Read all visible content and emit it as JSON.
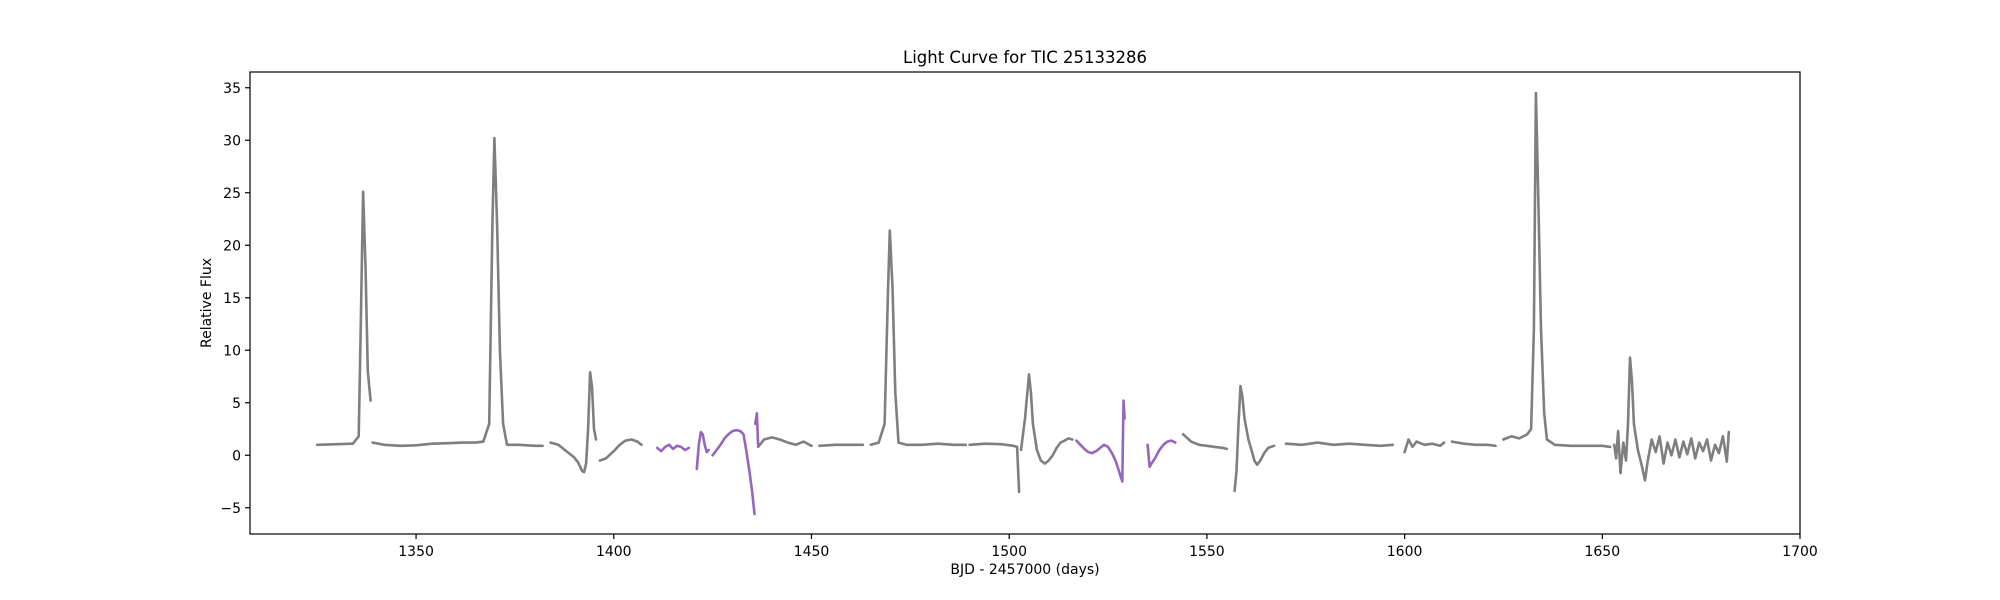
{
  "chart_data": {
    "type": "line",
    "title": "Light Curve for TIC 25133286",
    "xlabel": "BJD - 2457000 (days)",
    "ylabel": "Relative Flux",
    "xlim": [
      1308,
      1700
    ],
    "ylim": [
      -7.5,
      36.5
    ],
    "xticks": [
      1350,
      1400,
      1450,
      1500,
      1550,
      1600,
      1650,
      1700
    ],
    "yticks": [
      -5,
      0,
      5,
      10,
      15,
      20,
      25,
      30,
      35
    ],
    "grid": false,
    "legend": "none",
    "series": [
      {
        "color": "#7f7f7f",
        "segments": [
          [
            [
              1325,
              1.0
            ],
            [
              1330,
              1.05
            ],
            [
              1334,
              1.1
            ],
            [
              1335.5,
              1.8
            ],
            [
              1336,
              12
            ],
            [
              1336.6,
              25.1
            ],
            [
              1337.2,
              18
            ],
            [
              1337.8,
              8
            ],
            [
              1338.5,
              5.2
            ]
          ],
          [
            [
              1339,
              1.2
            ],
            [
              1342,
              1.0
            ],
            [
              1346,
              0.9
            ],
            [
              1350,
              0.95
            ],
            [
              1354,
              1.1
            ],
            [
              1358,
              1.15
            ],
            [
              1362,
              1.2
            ],
            [
              1365,
              1.2
            ],
            [
              1367,
              1.3
            ],
            [
              1368.5,
              3
            ],
            [
              1369.3,
              22
            ],
            [
              1369.8,
              30.2
            ],
            [
              1370.5,
              22
            ],
            [
              1371.2,
              10
            ],
            [
              1372,
              3
            ],
            [
              1373,
              1.0
            ],
            [
              1376,
              1.0
            ],
            [
              1380,
              0.9
            ],
            [
              1382,
              0.9
            ]
          ],
          [
            [
              1384,
              1.2
            ],
            [
              1386,
              1.0
            ],
            [
              1388,
              0.4
            ],
            [
              1390,
              -0.2
            ],
            [
              1391,
              -0.7
            ],
            [
              1392,
              -1.5
            ],
            [
              1392.5,
              -1.6
            ],
            [
              1393,
              -0.8
            ],
            [
              1393.5,
              2.5
            ],
            [
              1394,
              7.9
            ],
            [
              1394.5,
              6.5
            ],
            [
              1395,
              2.5
            ],
            [
              1395.5,
              1.5
            ]
          ],
          [
            [
              1396.5,
              -0.5
            ],
            [
              1398,
              -0.3
            ],
            [
              1400,
              0.4
            ],
            [
              1401.5,
              1.0
            ],
            [
              1403,
              1.4
            ],
            [
              1404.5,
              1.5
            ],
            [
              1406,
              1.3
            ],
            [
              1407,
              1.0
            ]
          ],
          [
            [
              1436.5,
              0.8
            ],
            [
              1438,
              1.5
            ],
            [
              1440,
              1.7
            ],
            [
              1442,
              1.5
            ],
            [
              1444,
              1.2
            ],
            [
              1446,
              1.0
            ],
            [
              1448,
              1.3
            ],
            [
              1450,
              0.9
            ]
          ],
          [
            [
              1452,
              0.9
            ],
            [
              1456,
              1.0
            ],
            [
              1460,
              1.0
            ],
            [
              1463,
              1.0
            ]
          ],
          [
            [
              1465,
              1.0
            ],
            [
              1467,
              1.2
            ],
            [
              1468.5,
              3
            ],
            [
              1469.3,
              15
            ],
            [
              1469.8,
              21.4
            ],
            [
              1470.5,
              16
            ],
            [
              1471.2,
              6
            ],
            [
              1472,
              1.2
            ],
            [
              1474,
              1.0
            ],
            [
              1478,
              1.0
            ],
            [
              1482,
              1.1
            ],
            [
              1486,
              1.0
            ],
            [
              1489,
              1.0
            ]
          ],
          [
            [
              1490,
              1.0
            ],
            [
              1494,
              1.1
            ],
            [
              1498,
              1.05
            ],
            [
              1501,
              0.9
            ],
            [
              1502,
              0.8
            ],
            [
              1502.5,
              -3.5
            ]
          ],
          [
            [
              1503,
              0.5
            ],
            [
              1504,
              3.5
            ],
            [
              1505,
              7.7
            ],
            [
              1505.5,
              6
            ],
            [
              1506,
              3
            ],
            [
              1507,
              0.5
            ],
            [
              1508,
              -0.5
            ],
            [
              1509,
              -0.8
            ],
            [
              1510,
              -0.5
            ],
            [
              1511,
              0
            ],
            [
              1512,
              0.7
            ],
            [
              1513,
              1.2
            ],
            [
              1514,
              1.4
            ],
            [
              1515,
              1.6
            ],
            [
              1516,
              1.5
            ]
          ],
          [
            [
              1544,
              2.0
            ],
            [
              1546,
              1.3
            ],
            [
              1548,
              1.0
            ],
            [
              1550,
              0.9
            ],
            [
              1552,
              0.8
            ],
            [
              1554,
              0.7
            ],
            [
              1555,
              0.6
            ]
          ],
          [
            [
              1557,
              -3.4
            ],
            [
              1557.5,
              -1.5
            ],
            [
              1558,
              3
            ],
            [
              1558.5,
              6.6
            ],
            [
              1559,
              5.5
            ],
            [
              1559.5,
              3.5
            ],
            [
              1560.5,
              1.5
            ],
            [
              1561.5,
              0.2
            ],
            [
              1562,
              -0.5
            ],
            [
              1562.7,
              -0.9
            ],
            [
              1563.5,
              -0.5
            ],
            [
              1564.5,
              0.2
            ],
            [
              1565.5,
              0.7
            ],
            [
              1567,
              0.9
            ]
          ],
          [
            [
              1570,
              1.1
            ],
            [
              1574,
              1.0
            ],
            [
              1578,
              1.2
            ],
            [
              1582,
              1.0
            ],
            [
              1586,
              1.1
            ],
            [
              1590,
              1.0
            ],
            [
              1594,
              0.9
            ],
            [
              1597,
              1.0
            ]
          ],
          [
            [
              1600,
              0.3
            ],
            [
              1601,
              1.5
            ],
            [
              1602,
              0.8
            ],
            [
              1603,
              1.3
            ],
            [
              1605,
              1.0
            ],
            [
              1607,
              1.1
            ],
            [
              1609,
              0.9
            ],
            [
              1610,
              1.2
            ]
          ],
          [
            [
              1612,
              1.3
            ],
            [
              1615,
              1.1
            ],
            [
              1618,
              1.0
            ],
            [
              1621,
              1.0
            ],
            [
              1623,
              0.9
            ]
          ],
          [
            [
              1625,
              1.5
            ],
            [
              1627,
              1.8
            ],
            [
              1629,
              1.6
            ],
            [
              1631,
              2.0
            ],
            [
              1632,
              2.5
            ],
            [
              1632.7,
              12
            ],
            [
              1633.2,
              34.5
            ],
            [
              1633.8,
              25
            ],
            [
              1634.5,
              12
            ],
            [
              1635.3,
              4
            ],
            [
              1636,
              1.5
            ],
            [
              1638,
              1.0
            ],
            [
              1642,
              0.9
            ],
            [
              1646,
              0.9
            ],
            [
              1650,
              0.9
            ],
            [
              1652,
              0.8
            ]
          ],
          [
            [
              1653,
              1.0
            ],
            [
              1653.5,
              -0.3
            ],
            [
              1654,
              2.3
            ],
            [
              1654.6,
              -1.7
            ],
            [
              1655.3,
              1.2
            ],
            [
              1656,
              -0.5
            ],
            [
              1656.5,
              3
            ],
            [
              1657,
              9.3
            ],
            [
              1657.5,
              7
            ],
            [
              1658,
              3
            ],
            [
              1659,
              0.5
            ],
            [
              1660,
              -1.0
            ],
            [
              1660.8,
              -2.4
            ],
            [
              1661.5,
              -0.5
            ],
            [
              1662.5,
              1.5
            ],
            [
              1663.5,
              0.3
            ],
            [
              1664.5,
              1.8
            ],
            [
              1665.5,
              -0.8
            ],
            [
              1666.5,
              1.2
            ],
            [
              1667.5,
              0.0
            ],
            [
              1668.5,
              1.5
            ],
            [
              1669.5,
              -0.2
            ],
            [
              1670.5,
              1.3
            ],
            [
              1671.5,
              0.1
            ],
            [
              1672.5,
              1.6
            ],
            [
              1673.5,
              -0.3
            ],
            [
              1674.5,
              1.2
            ],
            [
              1675.5,
              0.4
            ],
            [
              1676.5,
              1.5
            ],
            [
              1677.5,
              -0.5
            ],
            [
              1678.5,
              1.0
            ],
            [
              1679.5,
              0.2
            ],
            [
              1680.5,
              1.8
            ],
            [
              1681.5,
              -0.6
            ],
            [
              1682,
              2.2
            ]
          ]
        ]
      },
      {
        "color": "#9467bd",
        "segments": [
          [
            [
              1411,
              0.7
            ],
            [
              1412,
              0.4
            ],
            [
              1413,
              0.8
            ],
            [
              1414,
              1.0
            ],
            [
              1415,
              0.6
            ],
            [
              1416,
              0.9
            ],
            [
              1417,
              0.8
            ],
            [
              1418,
              0.5
            ],
            [
              1419,
              0.7
            ]
          ],
          [
            [
              1421,
              -1.3
            ],
            [
              1421.5,
              1.0
            ],
            [
              1422,
              2.2
            ],
            [
              1422.5,
              2.0
            ],
            [
              1423,
              1.0
            ],
            [
              1423.5,
              0.3
            ],
            [
              1424,
              0.5
            ]
          ],
          [
            [
              1425,
              0.0
            ],
            [
              1426,
              0.5
            ],
            [
              1427,
              1.0
            ],
            [
              1428,
              1.6
            ],
            [
              1429,
              2.0
            ],
            [
              1430,
              2.3
            ],
            [
              1431,
              2.4
            ],
            [
              1432,
              2.3
            ],
            [
              1432.8,
              2.0
            ],
            [
              1433.5,
              0.5
            ],
            [
              1434.3,
              -1.5
            ],
            [
              1435,
              -3.5
            ],
            [
              1435.6,
              -5.6
            ]
          ],
          [
            [
              1435.8,
              3.0
            ],
            [
              1436.2,
              4.0
            ],
            [
              1436.5,
              1.0
            ]
          ],
          [
            [
              1517,
              1.4
            ],
            [
              1518,
              1.0
            ],
            [
              1519,
              0.6
            ],
            [
              1520,
              0.3
            ],
            [
              1521,
              0.2
            ],
            [
              1522,
              0.4
            ],
            [
              1523,
              0.7
            ],
            [
              1524,
              1.0
            ],
            [
              1525,
              0.8
            ],
            [
              1526,
              0.2
            ],
            [
              1527,
              -0.6
            ],
            [
              1528,
              -1.8
            ],
            [
              1528.6,
              -2.5
            ],
            [
              1528.9,
              5.2
            ],
            [
              1529.2,
              3.5
            ]
          ],
          [
            [
              1535,
              1.0
            ],
            [
              1535.5,
              -1.1
            ],
            [
              1536,
              -0.8
            ],
            [
              1537,
              -0.2
            ],
            [
              1538,
              0.5
            ],
            [
              1539,
              1.0
            ],
            [
              1540,
              1.3
            ],
            [
              1541,
              1.4
            ],
            [
              1542,
              1.2
            ]
          ]
        ]
      }
    ]
  }
}
